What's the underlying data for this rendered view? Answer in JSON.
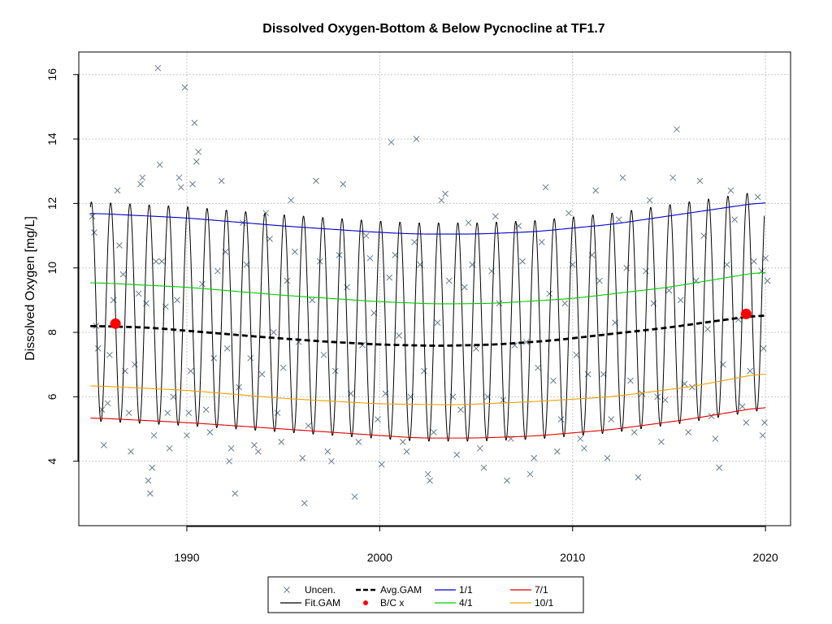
{
  "chart_data": {
    "type": "line",
    "title": "Dissolved Oxygen-Bottom & Below Pycnocline at TF1.7",
    "xlabel": "",
    "ylabel": "Dissolved Oxygen [mg/L]",
    "xlim": [
      1984.4,
      2021.3
    ],
    "ylim": [
      2.0,
      16.7
    ],
    "x_ticks": [
      1990,
      2000,
      2010,
      2020
    ],
    "y_ticks": [
      4,
      6,
      8,
      10,
      12,
      14,
      16
    ],
    "grid": true,
    "legend_position": "bottom",
    "legend": [
      {
        "label": "Uncen.",
        "kind": "x",
        "color": "#6b7b8c"
      },
      {
        "label": "Fit.GAM",
        "kind": "line",
        "color": "#000000"
      },
      {
        "label": "Avg.GAM",
        "kind": "dash",
        "color": "#000000"
      },
      {
        "label": "B/C x",
        "kind": "dot",
        "color": "#ff0000"
      },
      {
        "label": "1/1",
        "kind": "line",
        "color": "#0000cc"
      },
      {
        "label": "4/1",
        "kind": "line",
        "color": "#00cc00"
      },
      {
        "label": "7/1",
        "kind": "line",
        "color": "#dd0000"
      },
      {
        "label": "10/1",
        "kind": "line",
        "color": "#f0a000"
      }
    ],
    "fit_gam": {
      "name": "Fit.GAM",
      "color": "#000000",
      "x_start": 1985.0,
      "x_end": 2019.95,
      "cycle_years": 1.0,
      "peak_phase": 0.05,
      "description_values": "seasonal oscillation between the 1/1 (winter high) and 7/1 (summer low) curves"
    },
    "series": [
      {
        "name": "Avg.GAM",
        "color": "#000000",
        "dashed": true,
        "x": [
          1985,
          1988,
          1991,
          1994,
          1997,
          2000,
          2003,
          2006,
          2009,
          2012,
          2015,
          2018,
          2020
        ],
        "y": [
          8.2,
          8.15,
          8.0,
          7.85,
          7.72,
          7.62,
          7.58,
          7.62,
          7.75,
          7.95,
          8.15,
          8.4,
          8.55
        ]
      },
      {
        "name": "1/1",
        "color": "#0000cc",
        "x": [
          1985,
          1990,
          1995,
          2000,
          2002,
          2005,
          2008,
          2012,
          2016,
          2020
        ],
        "y": [
          11.7,
          11.55,
          11.3,
          11.1,
          11.05,
          11.05,
          11.12,
          11.35,
          11.7,
          12.05
        ]
      },
      {
        "name": "4/1",
        "color": "#00cc00",
        "x": [
          1985,
          1990,
          1995,
          2000,
          2003,
          2006,
          2010,
          2015,
          2020
        ],
        "y": [
          9.55,
          9.4,
          9.15,
          8.95,
          8.88,
          8.9,
          9.05,
          9.4,
          9.9
        ]
      },
      {
        "name": "7/1",
        "color": "#dd0000",
        "x": [
          1985,
          1990,
          1995,
          2000,
          2002,
          2005,
          2008,
          2012,
          2016,
          2020
        ],
        "y": [
          5.35,
          5.2,
          5.0,
          4.8,
          4.72,
          4.72,
          4.78,
          4.98,
          5.3,
          5.7
        ]
      },
      {
        "name": "10/1",
        "color": "#f0a000",
        "x": [
          1985,
          1990,
          1995,
          2000,
          2004,
          2008,
          2012,
          2016,
          2020
        ],
        "y": [
          6.35,
          6.2,
          5.95,
          5.78,
          5.75,
          5.85,
          6.0,
          6.3,
          6.75
        ]
      }
    ],
    "bc_points": {
      "name": "B/C x",
      "color": "#ff0000",
      "points": [
        {
          "x": 1986.3,
          "y": 8.27
        },
        {
          "x": 2019.0,
          "y": 8.57
        }
      ]
    },
    "observations": {
      "name": "Uncen.",
      "color": "#6b7b8c",
      "points": [
        [
          1985.1,
          11.6
        ],
        [
          1985.2,
          11.1
        ],
        [
          1985.3,
          8.2
        ],
        [
          1985.4,
          7.5
        ],
        [
          1985.6,
          5.6
        ],
        [
          1985.7,
          4.5
        ],
        [
          1985.9,
          5.8
        ],
        [
          1986.0,
          7.3
        ],
        [
          1986.2,
          9.0
        ],
        [
          1986.4,
          12.4
        ],
        [
          1986.5,
          10.7
        ],
        [
          1986.7,
          9.8
        ],
        [
          1986.8,
          6.8
        ],
        [
          1987.0,
          5.5
        ],
        [
          1987.1,
          4.3
        ],
        [
          1987.3,
          7.0
        ],
        [
          1987.5,
          9.2
        ],
        [
          1987.6,
          12.6
        ],
        [
          1987.7,
          12.8
        ],
        [
          1987.9,
          8.9
        ],
        [
          1988.0,
          3.4
        ],
        [
          1988.1,
          3.0
        ],
        [
          1988.2,
          3.8
        ],
        [
          1988.3,
          4.8
        ],
        [
          1988.4,
          10.2
        ],
        [
          1988.5,
          16.2
        ],
        [
          1988.6,
          13.2
        ],
        [
          1988.7,
          10.2
        ],
        [
          1988.9,
          8.8
        ],
        [
          1989.0,
          5.5
        ],
        [
          1989.1,
          4.4
        ],
        [
          1989.3,
          6.0
        ],
        [
          1989.5,
          9.0
        ],
        [
          1989.6,
          12.8
        ],
        [
          1989.7,
          12.5
        ],
        [
          1989.9,
          15.6
        ],
        [
          1990.0,
          4.8
        ],
        [
          1990.1,
          5.5
        ],
        [
          1990.2,
          6.8
        ],
        [
          1990.3,
          12.6
        ],
        [
          1990.4,
          14.5
        ],
        [
          1990.5,
          13.3
        ],
        [
          1990.6,
          13.6
        ],
        [
          1990.8,
          9.5
        ],
        [
          1991.0,
          5.6
        ],
        [
          1991.2,
          4.9
        ],
        [
          1991.4,
          7.2
        ],
        [
          1991.6,
          9.9
        ],
        [
          1991.8,
          12.7
        ],
        [
          1992.0,
          10.5
        ],
        [
          1992.1,
          7.5
        ],
        [
          1992.2,
          4.0
        ],
        [
          1992.3,
          4.4
        ],
        [
          1992.5,
          3.0
        ],
        [
          1992.7,
          6.3
        ],
        [
          1992.9,
          11.4
        ],
        [
          1993.1,
          10.1
        ],
        [
          1993.3,
          7.2
        ],
        [
          1993.5,
          4.5
        ],
        [
          1993.7,
          4.3
        ],
        [
          1993.9,
          6.7
        ],
        [
          1994.1,
          11.7
        ],
        [
          1994.3,
          10.9
        ],
        [
          1994.5,
          8.0
        ],
        [
          1994.7,
          5.5
        ],
        [
          1994.9,
          4.6
        ],
        [
          1995.0,
          6.9
        ],
        [
          1995.2,
          9.6
        ],
        [
          1995.4,
          12.1
        ],
        [
          1995.6,
          10.5
        ],
        [
          1995.8,
          7.7
        ],
        [
          1996.0,
          4.1
        ],
        [
          1996.1,
          2.7
        ],
        [
          1996.3,
          5.1
        ],
        [
          1996.5,
          9.0
        ],
        [
          1996.7,
          12.7
        ],
        [
          1996.9,
          10.2
        ],
        [
          1997.1,
          7.3
        ],
        [
          1997.3,
          4.3
        ],
        [
          1997.5,
          4.0
        ],
        [
          1997.7,
          6.8
        ],
        [
          1997.9,
          10.4
        ],
        [
          1998.1,
          12.6
        ],
        [
          1998.3,
          9.4
        ],
        [
          1998.5,
          6.1
        ],
        [
          1998.7,
          2.9
        ],
        [
          1998.9,
          4.6
        ],
        [
          1999.1,
          7.6
        ],
        [
          1999.3,
          11.0
        ],
        [
          1999.5,
          10.3
        ],
        [
          1999.7,
          8.6
        ],
        [
          1999.9,
          5.3
        ],
        [
          2000.1,
          3.9
        ],
        [
          2000.3,
          6.1
        ],
        [
          2000.5,
          9.7
        ],
        [
          2000.6,
          13.9
        ],
        [
          2000.8,
          10.4
        ],
        [
          2001.0,
          7.9
        ],
        [
          2001.2,
          4.6
        ],
        [
          2001.4,
          4.3
        ],
        [
          2001.6,
          6.0
        ],
        [
          2001.8,
          10.8
        ],
        [
          2001.9,
          14.0
        ],
        [
          2002.1,
          10.1
        ],
        [
          2002.3,
          6.8
        ],
        [
          2002.5,
          3.6
        ],
        [
          2002.6,
          3.4
        ],
        [
          2002.8,
          4.9
        ],
        [
          2003.0,
          8.3
        ],
        [
          2003.2,
          12.1
        ],
        [
          2003.4,
          12.3
        ],
        [
          2003.6,
          9.6
        ],
        [
          2003.8,
          6.0
        ],
        [
          2004.0,
          4.2
        ],
        [
          2004.2,
          5.6
        ],
        [
          2004.4,
          9.4
        ],
        [
          2004.6,
          11.4
        ],
        [
          2004.8,
          10.1
        ],
        [
          2005.0,
          7.5
        ],
        [
          2005.2,
          4.4
        ],
        [
          2005.4,
          3.8
        ],
        [
          2005.6,
          6.0
        ],
        [
          2005.8,
          9.9
        ],
        [
          2006.0,
          11.6
        ],
        [
          2006.2,
          8.9
        ],
        [
          2006.4,
          5.9
        ],
        [
          2006.6,
          3.4
        ],
        [
          2006.8,
          4.7
        ],
        [
          2007.0,
          7.6
        ],
        [
          2007.2,
          11.3
        ],
        [
          2007.4,
          10.2
        ],
        [
          2007.6,
          7.7
        ],
        [
          2007.8,
          3.6
        ],
        [
          2008.0,
          4.1
        ],
        [
          2008.2,
          6.9
        ],
        [
          2008.4,
          10.8
        ],
        [
          2008.6,
          12.5
        ],
        [
          2008.8,
          9.2
        ],
        [
          2009.0,
          6.5
        ],
        [
          2009.2,
          4.3
        ],
        [
          2009.4,
          5.3
        ],
        [
          2009.6,
          8.9
        ],
        [
          2009.8,
          11.7
        ],
        [
          2010.0,
          10.1
        ],
        [
          2010.2,
          7.3
        ],
        [
          2010.4,
          4.7
        ],
        [
          2010.6,
          4.4
        ],
        [
          2010.8,
          6.7
        ],
        [
          2011.0,
          10.4
        ],
        [
          2011.2,
          12.4
        ],
        [
          2011.4,
          9.6
        ],
        [
          2011.6,
          6.7
        ],
        [
          2011.8,
          4.1
        ],
        [
          2012.0,
          5.3
        ],
        [
          2012.2,
          8.3
        ],
        [
          2012.4,
          11.5
        ],
        [
          2012.6,
          12.8
        ],
        [
          2012.8,
          10.0
        ],
        [
          2013.0,
          6.5
        ],
        [
          2013.2,
          4.9
        ],
        [
          2013.4,
          3.5
        ],
        [
          2013.6,
          6.1
        ],
        [
          2013.8,
          9.9
        ],
        [
          2014.0,
          12.1
        ],
        [
          2014.2,
          8.9
        ],
        [
          2014.4,
          6.0
        ],
        [
          2014.6,
          4.6
        ],
        [
          2014.8,
          5.9
        ],
        [
          2015.0,
          9.3
        ],
        [
          2015.2,
          12.8
        ],
        [
          2015.4,
          14.3
        ],
        [
          2015.6,
          9.0
        ],
        [
          2015.8,
          6.4
        ],
        [
          2016.0,
          4.9
        ],
        [
          2016.2,
          6.3
        ],
        [
          2016.4,
          9.6
        ],
        [
          2016.6,
          12.7
        ],
        [
          2016.8,
          11.0
        ],
        [
          2017.0,
          8.1
        ],
        [
          2017.2,
          5.4
        ],
        [
          2017.4,
          4.7
        ],
        [
          2017.6,
          3.8
        ],
        [
          2017.8,
          7.0
        ],
        [
          2018.0,
          10.1
        ],
        [
          2018.2,
          12.4
        ],
        [
          2018.4,
          11.5
        ],
        [
          2018.6,
          8.4
        ],
        [
          2018.8,
          5.7
        ],
        [
          2019.0,
          5.2
        ],
        [
          2019.2,
          6.8
        ],
        [
          2019.4,
          10.2
        ],
        [
          2019.6,
          12.2
        ],
        [
          2019.8,
          9.9
        ],
        [
          2019.9,
          7.5
        ],
        [
          2020.0,
          10.3
        ],
        [
          2020.1,
          9.6
        ],
        [
          2019.95,
          5.2
        ],
        [
          2019.85,
          4.8
        ]
      ]
    }
  }
}
